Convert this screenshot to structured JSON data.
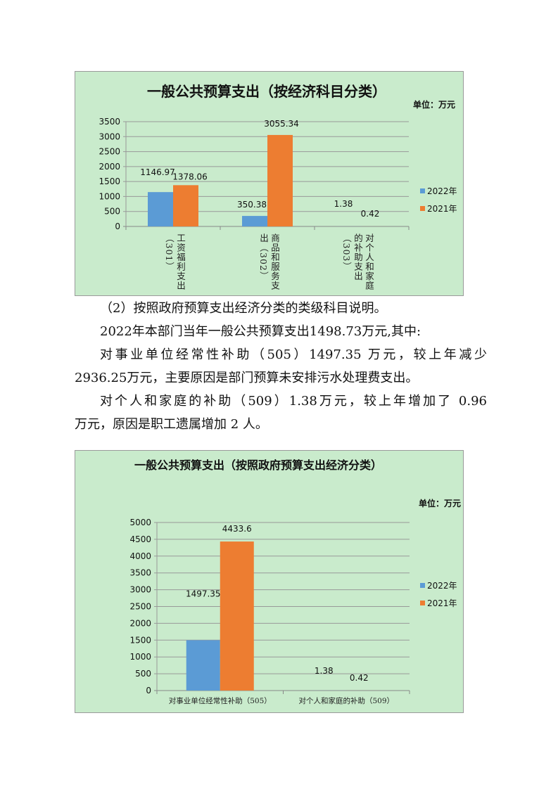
{
  "chart_data": [
    {
      "type": "bar",
      "title": "一般公共预算支出（按经济科目分类）",
      "unit_label": "单位：万元",
      "categories": [
        "工资福利支出（301）",
        "商品和服务支出（302）",
        "对个人和家庭的补助支出（303）"
      ],
      "category_label_lines": [
        [
          "工资福利支出",
          "（301）"
        ],
        [
          "商品和服务支",
          "出（302）"
        ],
        [
          "对个人和家庭",
          "的补助支出",
          "（303）"
        ]
      ],
      "series": [
        {
          "name": "2022年",
          "values": [
            1146.97,
            350.38,
            1.38
          ],
          "color": "#5b9bd5"
        },
        {
          "name": "2021年",
          "values": [
            1378.06,
            3055.34,
            0.42
          ],
          "color": "#ed7d31"
        }
      ],
      "data_labels": [
        [
          "1146.97",
          "350.38",
          "1.38"
        ],
        [
          "1378.06",
          "3055.34",
          "0.42"
        ]
      ],
      "ylim": [
        0,
        3500
      ],
      "yticks": [
        "0",
        "500",
        "1000",
        "1500",
        "2000",
        "2500",
        "3000",
        "3500"
      ],
      "grid": true,
      "legend": "right",
      "background": "#c9ebcc"
    },
    {
      "type": "bar",
      "title": "一般公共预算支出（按照政府预算支出经济分类）",
      "unit_label": "单位：万元",
      "categories": [
        "对事业单位经常性补助（505）",
        "对个人和家庭的补助（509）"
      ],
      "series": [
        {
          "name": "2022年",
          "values": [
            1497.35,
            1.38
          ],
          "color": "#5b9bd5"
        },
        {
          "name": "2021年",
          "values": [
            4433.6,
            0.42
          ],
          "color": "#ed7d31"
        }
      ],
      "data_labels": [
        [
          "1497.35",
          "1.38"
        ],
        [
          "4433.6",
          "0.42"
        ]
      ],
      "ylim": [
        0,
        5000
      ],
      "yticks": [
        "0",
        "500",
        "1000",
        "1500",
        "2000",
        "2500",
        "3000",
        "3500",
        "4000",
        "4500",
        "5000"
      ],
      "grid": true,
      "legend": "right",
      "background": "#c9ebcc"
    }
  ],
  "text": {
    "lines": [
      "（2）按照政府预算支出经济分类的类级科目说明。",
      "2022年本部门当年一般公共预算支出1498.73万元,其中:",
      "对事业单位经常性补助（505）1497.35 万元，较上年减少",
      "2936.25万元，主要原因是部门预算未安排污水处理费支出。",
      "对个人和家庭的补助（509）1.38万元，较上年增加了 0.96",
      "万元，原因是职工遗属增加 2 人。"
    ]
  }
}
